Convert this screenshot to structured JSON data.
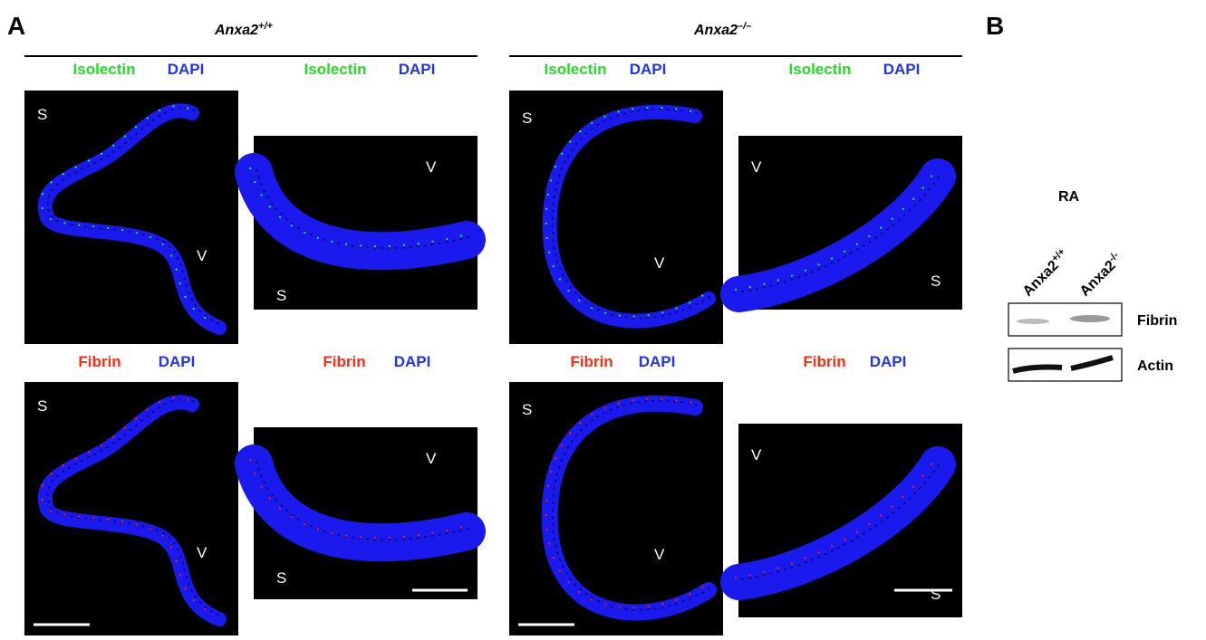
{
  "figure": {
    "panel_labels": {
      "a": "A",
      "b": "B"
    },
    "panel_a": {
      "genotypes": [
        {
          "gene": "Anxa2",
          "allele": "+/+"
        },
        {
          "gene": "Anxa2",
          "allele": "–/–"
        }
      ],
      "images": [
        {
          "stains": [
            "Isolectin",
            "DAPI"
          ],
          "markers": [
            "S",
            "V"
          ]
        },
        {
          "stains": [
            "Isolectin",
            "DAPI"
          ],
          "markers": [
            "V",
            "S"
          ]
        },
        {
          "stains": [
            "Isolectin",
            "DAPI"
          ],
          "markers": [
            "S",
            "V"
          ]
        },
        {
          "stains": [
            "Isolectin",
            "DAPI"
          ],
          "markers": [
            "V",
            "S"
          ]
        },
        {
          "stains": [
            "Fibrin",
            "DAPI"
          ],
          "markers": [
            "S",
            "V"
          ]
        },
        {
          "stains": [
            "Fibrin",
            "DAPI"
          ],
          "markers": [
            "V",
            "S"
          ]
        },
        {
          "stains": [
            "Fibrin",
            "DAPI"
          ],
          "markers": [
            "S",
            "V"
          ]
        },
        {
          "stains": [
            "Fibrin",
            "DAPI"
          ],
          "markers": [
            "V",
            "S"
          ]
        }
      ]
    },
    "panel_b": {
      "treatment": "RA",
      "lanes": [
        {
          "gene": "Anxa2",
          "allele": "+/+"
        },
        {
          "gene": "Anxa2",
          "allele": "-/-"
        }
      ],
      "blots": [
        "Fibrin",
        "Actin"
      ]
    }
  }
}
